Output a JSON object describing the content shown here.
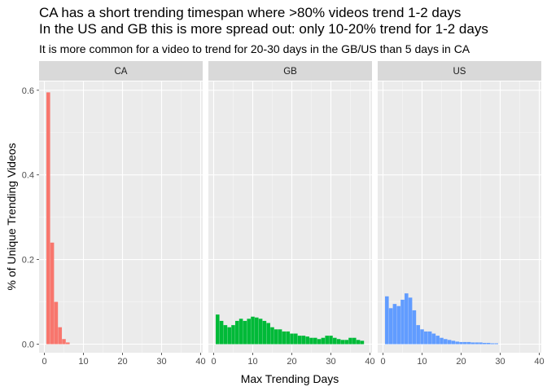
{
  "title_lines": [
    "CA has a short trending timespan where >80% videos trend 1-2 days",
    "In the US and GB this is more spread out: only 10-20% trend for 1-2 days"
  ],
  "subtitle": "It is more common for a video to trend for 20-30 days in the GB/US than 5 days in CA",
  "chart_data": {
    "type": "bar",
    "title": "CA has a short trending timespan where >80% videos trend 1-2 days\nIn the US and GB this is more spread out: only 10-20% trend for 1-2 days",
    "subtitle": "It is more common for a video to trend for 20-30 days in the GB/US than 5 days in CA",
    "xlabel": "Max Trending Days",
    "ylabel": "% of Unique Trending Videos",
    "xlim": [
      0,
      40
    ],
    "ylim": [
      0,
      0.6
    ],
    "x_ticks": [
      0,
      10,
      20,
      30,
      40
    ],
    "y_ticks": [
      0.0,
      0.2,
      0.4,
      0.6
    ],
    "y_tick_labels": [
      "0.0",
      "0.2",
      "0.4",
      "0.6"
    ],
    "grid": true,
    "legend": "none",
    "facets": [
      {
        "name": "CA",
        "color": "#F8766D",
        "x": [
          1,
          2,
          3,
          4,
          5,
          6
        ],
        "values": [
          0.595,
          0.24,
          0.1,
          0.04,
          0.012,
          0.004
        ]
      },
      {
        "name": "GB",
        "color": "#00BA38",
        "x": [
          1,
          2,
          3,
          4,
          5,
          6,
          7,
          8,
          9,
          10,
          11,
          12,
          13,
          14,
          15,
          16,
          17,
          18,
          19,
          20,
          21,
          22,
          23,
          24,
          25,
          26,
          27,
          28,
          29,
          30,
          31,
          32,
          33,
          34,
          35,
          36,
          37,
          38
        ],
        "values": [
          0.07,
          0.055,
          0.045,
          0.04,
          0.045,
          0.055,
          0.06,
          0.055,
          0.06,
          0.065,
          0.063,
          0.06,
          0.055,
          0.05,
          0.04,
          0.035,
          0.035,
          0.03,
          0.03,
          0.025,
          0.025,
          0.02,
          0.02,
          0.018,
          0.015,
          0.015,
          0.012,
          0.015,
          0.02,
          0.02,
          0.015,
          0.012,
          0.01,
          0.01,
          0.015,
          0.015,
          0.01,
          0.008
        ]
      },
      {
        "name": "US",
        "color": "#619CFF",
        "x": [
          1,
          2,
          3,
          4,
          5,
          6,
          7,
          8,
          9,
          10,
          11,
          12,
          13,
          14,
          15,
          16,
          17,
          18,
          19,
          20,
          21,
          22,
          23,
          24,
          25,
          26,
          27,
          28,
          29
        ],
        "values": [
          0.113,
          0.085,
          0.095,
          0.09,
          0.105,
          0.12,
          0.11,
          0.08,
          0.045,
          0.035,
          0.03,
          0.03,
          0.025,
          0.02,
          0.015,
          0.012,
          0.01,
          0.008,
          0.006,
          0.005,
          0.005,
          0.005,
          0.004,
          0.004,
          0.004,
          0.003,
          0.003,
          0.002,
          0.002
        ]
      }
    ]
  }
}
